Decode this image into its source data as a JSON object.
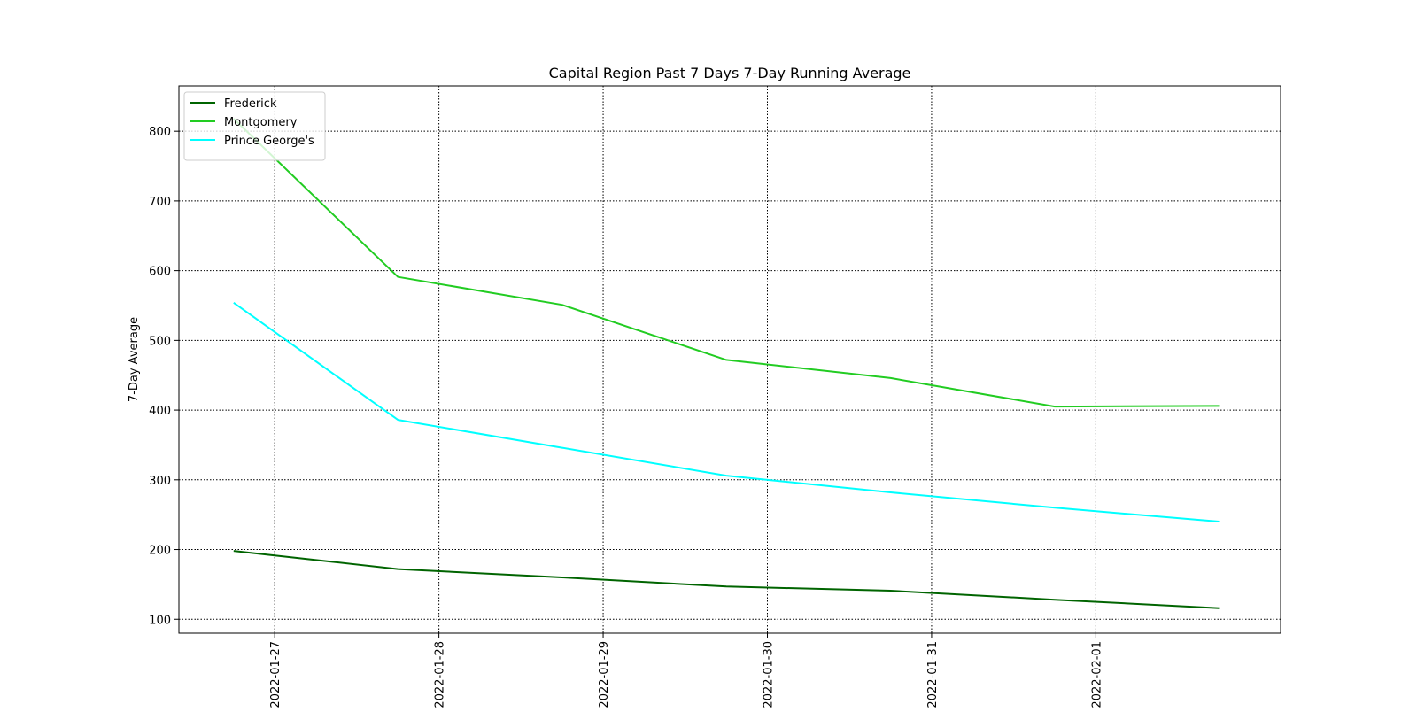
{
  "chart_data": {
    "type": "line",
    "title": "Capital Region Past 7 Days 7-Day Running Average",
    "xlabel": "",
    "ylabel": "7-Day Average",
    "x": [
      "2022-01-26T18:00",
      "2022-01-27T18:00",
      "2022-01-28T18:00",
      "2022-01-29T18:00",
      "2022-01-30T18:00",
      "2022-01-31T18:00",
      "2022-02-01T18:00"
    ],
    "x_ticks": [
      "2022-01-27",
      "2022-01-28",
      "2022-01-29",
      "2022-01-30",
      "2022-01-31",
      "2022-02-01"
    ],
    "xlim": [
      "2022-01-26T10:00",
      "2022-02-02T03:00"
    ],
    "ylim": [
      80,
      865
    ],
    "y_ticks": [
      100,
      200,
      300,
      400,
      500,
      600,
      700,
      800
    ],
    "grid": true,
    "legend_position": "top-left",
    "series": [
      {
        "name": "Frederick",
        "color": "#006400",
        "values": [
          198,
          172,
          160,
          147,
          141,
          128,
          116
        ]
      },
      {
        "name": "Montgomery",
        "color": "#22cc22",
        "values": [
          818,
          591,
          551,
          472,
          446,
          405,
          406
        ]
      },
      {
        "name": "Prince George's",
        "color": "#00ffff",
        "values": [
          554,
          386,
          346,
          306,
          282,
          260,
          240
        ]
      }
    ]
  }
}
